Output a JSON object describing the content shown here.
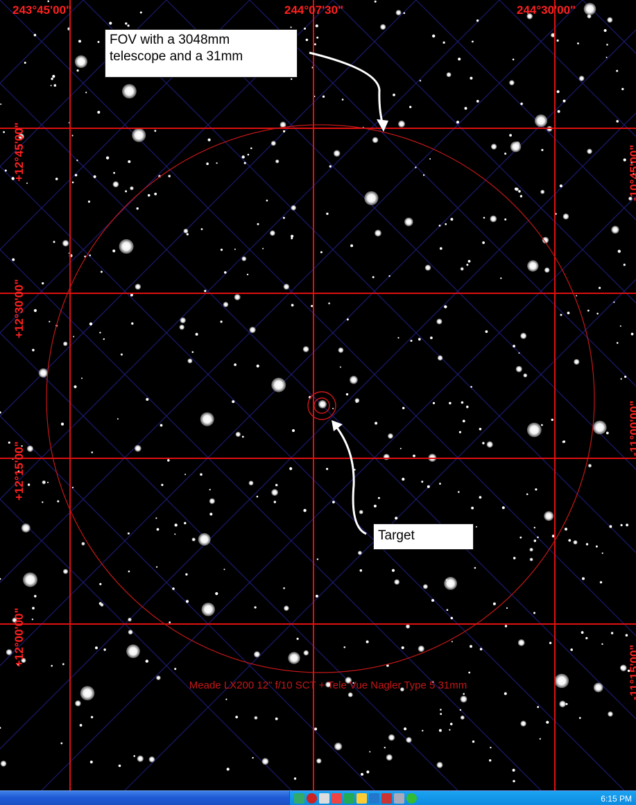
{
  "ra_labels": [
    "243°45'00\"",
    "244°07'30\"",
    "244°30'00\""
  ],
  "dec_labels_left": [
    "+12°45'00\"",
    "+12°30'00\"",
    "+12°15'00\"",
    "+12°00'00\""
  ],
  "dec_labels_right": [
    "-10°45'00\"",
    "-11°00'00\"",
    "-11°15'00\""
  ],
  "fov_caption": "Meade LX200 12\" f/10 SCT + Tele Vue Nagler Type 5 31mm",
  "callouts": {
    "fov": "FOV with a 3048mm\ntelescope and a 31mm",
    "target": "Target"
  },
  "taskbar": {
    "clock": "6:15 PM",
    "tray_icons": [
      "network-icon",
      "antivirus-icon",
      "volume-icon",
      "printer-icon",
      "messenger-icon",
      "security-icon",
      "update-icon",
      "battery-icon",
      "display-icon",
      "power-icon"
    ]
  },
  "colors": {
    "grid": "#e01010",
    "label": "#ff2020",
    "diagonal_grid": "#1a1a6e",
    "fov_circle": "#c41818",
    "taskbar": "#1f5ad4",
    "tray": "#0c8ae0"
  }
}
